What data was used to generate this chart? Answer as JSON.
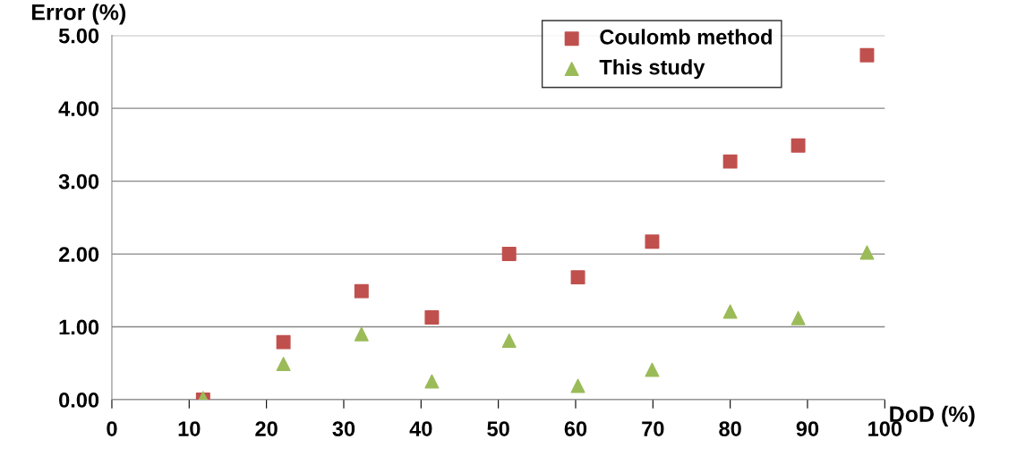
{
  "chart_data": {
    "type": "scatter",
    "xlabel": "DoD (%)",
    "ylabel": "Error (%)",
    "xlim": [
      0,
      100
    ],
    "xticks": [
      0,
      10,
      20,
      30,
      40,
      50,
      60,
      70,
      80,
      90,
      100
    ],
    "ylim": [
      0,
      5
    ],
    "yticks": [
      {
        "value": 0,
        "label": "0.00"
      },
      {
        "value": 1,
        "label": "1.00"
      },
      {
        "value": 2,
        "label": "2.00"
      },
      {
        "value": 3,
        "label": "3.00"
      },
      {
        "value": 4,
        "label": "4.00"
      },
      {
        "value": 5,
        "label": "5.00"
      }
    ],
    "grid": "y",
    "legend": "top right",
    "series": [
      {
        "name": "Coulomb method",
        "color": "#c0504d",
        "marker": "square",
        "x": [
          11.8,
          22.2,
          32.3,
          41.4,
          51.4,
          60.3,
          69.9,
          80.0,
          88.8,
          97.7
        ],
        "values": [
          0.0,
          0.79,
          1.49,
          1.13,
          2.0,
          1.68,
          2.17,
          3.27,
          3.49,
          4.73
        ]
      },
      {
        "name": "This study",
        "color": "#9bbb59",
        "marker": "triangle",
        "x": [
          11.8,
          22.2,
          32.3,
          41.4,
          51.4,
          60.3,
          69.9,
          80.0,
          88.8,
          97.7
        ],
        "values": [
          0.02,
          0.49,
          0.9,
          0.25,
          0.81,
          0.19,
          0.41,
          1.21,
          1.12,
          2.02
        ]
      }
    ]
  }
}
